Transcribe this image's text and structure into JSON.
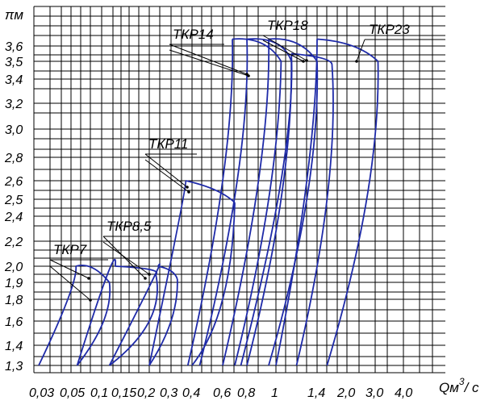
{
  "chart_data": {
    "type": "line",
    "title": "",
    "ylabel": "πм",
    "xlabel": "Qм³/с",
    "xlabel_base": "Qм",
    "xlabel_sup": "3",
    "xlabel_tail": "/ с",
    "y_ticks": [
      "1,3",
      "1,4",
      "1,6",
      "1,8",
      "1,9",
      "2,0",
      "2,2",
      "2,4",
      "2,5",
      "2,6",
      "2,8",
      "3,0",
      "3,2",
      "3,4",
      "3,5",
      "3,6"
    ],
    "x_ticks": [
      "0,03",
      "0,05",
      "0,1",
      "0,15",
      "0,2",
      "0,3",
      "0,4",
      "0,6",
      "0,8",
      "1",
      "1,4",
      "2,0",
      "3,0",
      "4,0"
    ],
    "series": [
      {
        "name": "ТКР7",
        "surge": [
          [
            0.03,
            1.3
          ],
          [
            0.048,
            1.8
          ],
          [
            0.058,
            2.0
          ]
        ],
        "top": [
          [
            0.058,
            2.0
          ],
          [
            0.085,
            1.99
          ],
          [
            0.12,
            1.9
          ]
        ],
        "choke": [
          [
            0.12,
            1.9
          ],
          [
            0.105,
            1.6
          ],
          [
            0.06,
            1.3
          ]
        ]
      },
      {
        "name": "ТКР8,5",
        "surge": [
          [
            0.06,
            1.3
          ],
          [
            0.115,
            1.95
          ],
          [
            0.135,
            2.0
          ]
        ],
        "top": [
          [
            0.135,
            2.0
          ],
          [
            0.2,
            1.98
          ],
          [
            0.23,
            1.95
          ]
        ],
        "choke": [
          [
            0.23,
            1.95
          ],
          [
            0.2,
            1.6
          ],
          [
            0.12,
            1.3
          ]
        ]
      },
      {
        "name": "ТКР8,5",
        "surge": [
          [
            0.12,
            1.3
          ],
          [
            0.21,
            1.9
          ],
          [
            0.24,
            2.0
          ]
        ],
        "top": [
          [
            0.24,
            2.0
          ],
          [
            0.3,
            1.97
          ],
          [
            0.33,
            1.92
          ]
        ],
        "choke": [
          [
            0.33,
            1.92
          ],
          [
            0.3,
            1.6
          ],
          [
            0.2,
            1.3
          ]
        ]
      },
      {
        "name": "ТКР11",
        "surge": [
          [
            0.2,
            1.3
          ],
          [
            0.33,
            2.3
          ],
          [
            0.37,
            2.6
          ]
        ],
        "top": [
          [
            0.37,
            2.6
          ],
          [
            0.55,
            2.55
          ],
          [
            0.7,
            2.48
          ]
        ],
        "choke": [
          [
            0.7,
            2.48
          ],
          [
            0.6,
            1.8
          ],
          [
            0.4,
            1.3
          ]
        ]
      },
      {
        "name": "ТКР14",
        "surge": [
          [
            0.38,
            1.3
          ],
          [
            0.6,
            2.6
          ],
          [
            0.68,
            3.65
          ]
        ],
        "top": [
          [
            0.68,
            3.65
          ],
          [
            0.9,
            3.62
          ],
          [
            1.05,
            3.5
          ]
        ],
        "choke": [
          [
            1.05,
            3.5
          ],
          [
            0.95,
            2.5
          ],
          [
            0.7,
            1.3
          ]
        ]
      },
      {
        "name": "ТКР14",
        "surge": [
          [
            0.45,
            1.3
          ],
          [
            0.72,
            2.6
          ],
          [
            0.8,
            3.65
          ]
        ],
        "top": [
          [
            0.8,
            3.65
          ],
          [
            1.0,
            3.62
          ],
          [
            1.15,
            3.5
          ]
        ],
        "choke": [
          [
            1.15,
            3.5
          ],
          [
            1.05,
            2.5
          ],
          [
            0.8,
            1.3
          ]
        ]
      },
      {
        "name": "ТКР18",
        "surge": [
          [
            0.6,
            1.3
          ],
          [
            0.88,
            2.6
          ],
          [
            0.95,
            3.65
          ]
        ],
        "top": [
          [
            0.95,
            3.65
          ],
          [
            1.2,
            3.62
          ],
          [
            1.4,
            3.5
          ]
        ],
        "choke": [
          [
            1.4,
            3.5
          ],
          [
            1.3,
            2.5
          ],
          [
            0.95,
            1.3
          ]
        ]
      },
      {
        "name": "ТКР18",
        "surge": [
          [
            0.75,
            1.3
          ],
          [
            1.05,
            2.6
          ],
          [
            1.15,
            3.55
          ]
        ],
        "top": [
          [
            1.15,
            3.55
          ],
          [
            1.5,
            3.52
          ],
          [
            1.7,
            3.48
          ]
        ],
        "choke": [
          [
            1.7,
            3.48
          ],
          [
            1.6,
            2.5
          ],
          [
            1.2,
            1.3
          ]
        ]
      },
      {
        "name": "ТКР23",
        "surge": [
          [
            1.0,
            1.3
          ],
          [
            1.3,
            2.6
          ],
          [
            1.4,
            3.65
          ]
        ],
        "top": [
          [
            1.4,
            3.65
          ],
          [
            2.2,
            3.6
          ],
          [
            3.1,
            3.5
          ]
        ],
        "choke": [
          [
            3.1,
            3.5
          ],
          [
            2.7,
            2.5
          ],
          [
            1.6,
            1.3
          ]
        ]
      }
    ],
    "labels": [
      {
        "text": "ТКР7"
      },
      {
        "text": "ТКР8,5"
      },
      {
        "text": "ТКР11"
      },
      {
        "text": "ТКР14"
      },
      {
        "text": "ТКР18"
      },
      {
        "text": "ТКР23"
      }
    ],
    "grid": true,
    "legend": "none",
    "curve_color": "#1e2aa8"
  }
}
